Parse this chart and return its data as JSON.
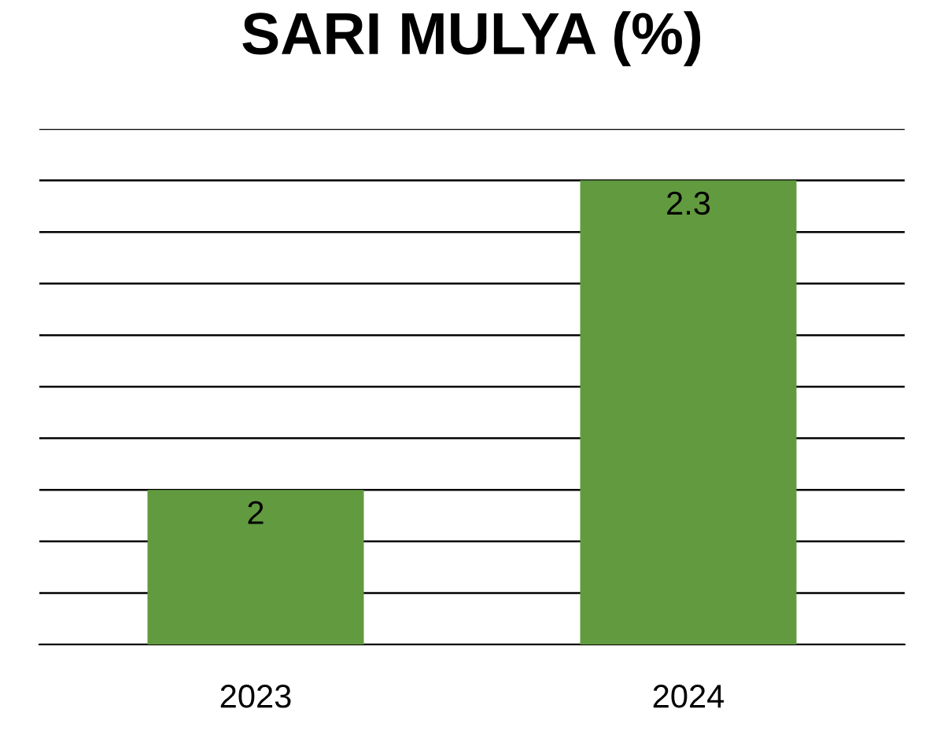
{
  "chart_data": {
    "type": "bar",
    "title": "SARI MULYA (%)",
    "categories": [
      "2023",
      "2024"
    ],
    "values": [
      2,
      2.3
    ],
    "color": "#629a3f",
    "ylim": [
      1.85,
      2.35
    ],
    "yticks": [
      {
        "value": 1.85,
        "label": null
      },
      {
        "value": 1.9,
        "label": null
      },
      {
        "value": 1.95,
        "label": null
      },
      {
        "value": 2.0,
        "label": null
      },
      {
        "value": 2.05,
        "label": null
      },
      {
        "value": 2.1,
        "label": null
      },
      {
        "value": 2.15,
        "label": null
      },
      {
        "value": 2.2,
        "label": null
      },
      {
        "value": 2.25,
        "label": null
      },
      {
        "value": 2.3,
        "label": null
      },
      {
        "value": 2.35,
        "label": null
      }
    ],
    "tick_labels": "x",
    "grid": "y",
    "data_labels": true
  }
}
